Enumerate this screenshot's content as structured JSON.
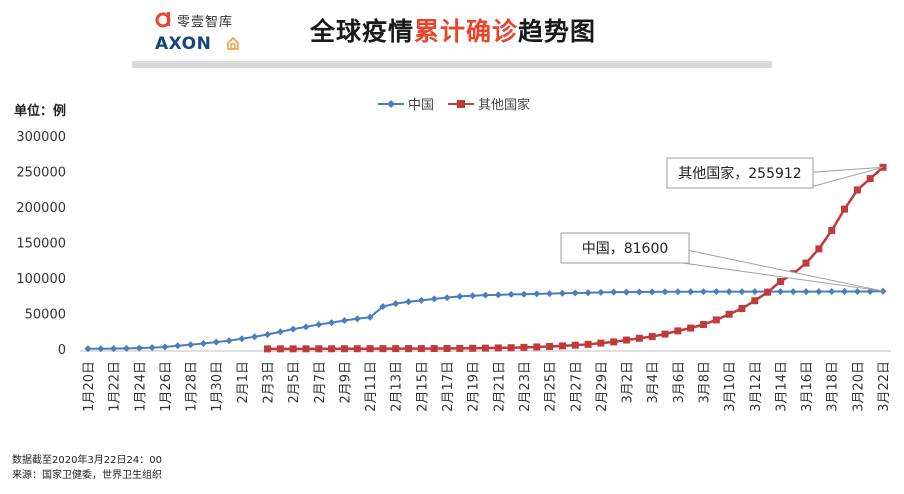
{
  "header": {
    "logo_cn": "零壹智库",
    "logo_axon": "AXON",
    "title_prefix": "全球疫情",
    "title_highlight": "累计确诊",
    "title_suffix": "趋势图"
  },
  "unit_label": "单位：例",
  "notes": {
    "cutoff": "数据截至2020年3月22日24：00",
    "source": "来源：国家卫健委，世界卫生组织"
  },
  "colors": {
    "china": "#4a7ebb",
    "other": "#c0393b",
    "title_highlight": "#e8452c"
  },
  "chart_data": {
    "type": "line",
    "ylim": [
      0,
      300000
    ],
    "yticks": [
      0,
      50000,
      100000,
      150000,
      200000,
      250000,
      300000
    ],
    "categories": [
      "1月20日",
      "1月21日",
      "1月22日",
      "1月23日",
      "1月24日",
      "1月25日",
      "1月26日",
      "1月27日",
      "1月28日",
      "1月29日",
      "1月30日",
      "1月31日",
      "2月1日",
      "2月2日",
      "2月3日",
      "2月4日",
      "2月5日",
      "2月6日",
      "2月7日",
      "2月8日",
      "2月9日",
      "2月10日",
      "2月11日",
      "2月12日",
      "2月13日",
      "2月14日",
      "2月15日",
      "2月16日",
      "2月17日",
      "2月18日",
      "2月19日",
      "2月20日",
      "2月21日",
      "2月22日",
      "2月23日",
      "2月24日",
      "2月25日",
      "2月26日",
      "2月27日",
      "2月28日",
      "2月29日",
      "3月1日",
      "3月2日",
      "3月3日",
      "3月4日",
      "3月5日",
      "3月6日",
      "3月7日",
      "3月8日",
      "3月9日",
      "3月10日",
      "3月11日",
      "3月12日",
      "3月13日",
      "3月14日",
      "3月15日",
      "3月16日",
      "3月17日",
      "3月18日",
      "3月19日",
      "3月20日",
      "3月21日",
      "3月22日"
    ],
    "tick_labels": [
      "1月20日",
      "1月22日",
      "1月24日",
      "1月26日",
      "1月28日",
      "1月30日",
      "2月1日",
      "2月3日",
      "2月5日",
      "2月7日",
      "2月9日",
      "2月11日",
      "2月13日",
      "2月15日",
      "2月17日",
      "2月19日",
      "2月21日",
      "2月23日",
      "2月25日",
      "2月27日",
      "2月29日",
      "3月2日",
      "3月4日",
      "3月6日",
      "3月8日",
      "3月10日",
      "3月12日",
      "3月14日",
      "3月16日",
      "3月18日",
      "3月20日",
      "3月22日"
    ],
    "series": [
      {
        "name": "中国",
        "color": "#4a7ebb",
        "marker": "diamond",
        "values": [
          291,
          440,
          571,
          830,
          1287,
          1975,
          2744,
          4515,
          5974,
          7711,
          9692,
          11791,
          14380,
          17205,
          20438,
          24324,
          28018,
          31161,
          34546,
          37198,
          40171,
          42638,
          44653,
          59804,
          63851,
          66492,
          68500,
          70548,
          72436,
          74185,
          75002,
          75891,
          76288,
          76936,
          77150,
          77658,
          78064,
          78497,
          78824,
          79251,
          79824,
          80026,
          80151,
          80270,
          80409,
          80552,
          80651,
          80695,
          80735,
          80754,
          80778,
          80793,
          80813,
          80824,
          80844,
          80860,
          80881,
          80894,
          80928,
          80967,
          81008,
          81054,
          81600
        ]
      },
      {
        "name": "其他国家",
        "color": "#c0393b",
        "marker": "square",
        "start_index": 14,
        "values": [
          null,
          null,
          null,
          null,
          null,
          null,
          null,
          null,
          null,
          null,
          null,
          null,
          null,
          null,
          180,
          200,
          220,
          260,
          290,
          330,
          360,
          390,
          430,
          470,
          510,
          540,
          580,
          640,
          700,
          800,
          1000,
          1200,
          1500,
          1800,
          2300,
          2900,
          3600,
          4400,
          5400,
          6600,
          8300,
          10000,
          12600,
          15100,
          17500,
          21000,
          25500,
          29500,
          34500,
          41000,
          49000,
          57000,
          68000,
          80000,
          95000,
          106000,
          121000,
          141000,
          167000,
          197000,
          224000,
          240000,
          255912
        ]
      }
    ],
    "annotations": [
      {
        "series": "其他国家",
        "text": "其他国家，255912"
      },
      {
        "series": "中国",
        "text": "中国，81600"
      }
    ]
  }
}
